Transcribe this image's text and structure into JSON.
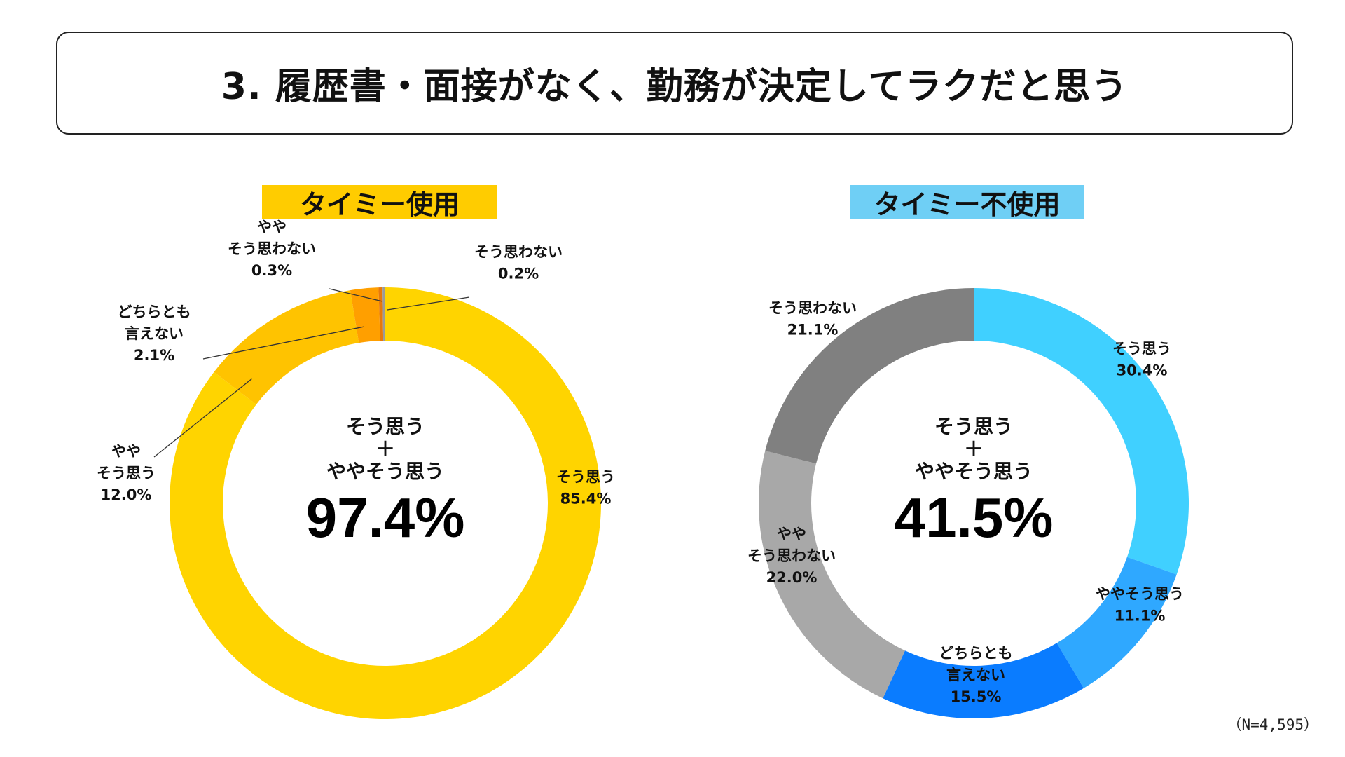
{
  "title": "3. 履歴書・面接がなく、勤務が決定してラクだと思う",
  "note": "（N=4,595）",
  "chart_data": [
    {
      "type": "pie",
      "title": "タイミー使用",
      "title_bg": "#FFCC00",
      "center_lines": [
        "そう思う",
        "＋",
        "ややそう思う"
      ],
      "center_value": "97.4%",
      "slices": [
        {
          "name": "そう思う",
          "value": 85.4,
          "value_label": "85.4%",
          "color": "#FFD400"
        },
        {
          "name": "やや\nそう思う",
          "value": 12.0,
          "value_label": "12.0%",
          "color": "#FFC300"
        },
        {
          "name": "どちらとも\n言えない",
          "value": 2.1,
          "value_label": "2.1%",
          "color": "#FF9F00"
        },
        {
          "name": "やや\nそう思わない",
          "value": 0.3,
          "value_label": "0.3%",
          "color": "#E8780A"
        },
        {
          "name": "そう思わない",
          "value": 0.2,
          "value_label": "0.2%",
          "color": "#9A9A9A"
        }
      ]
    },
    {
      "type": "pie",
      "title": "タイミー不使用",
      "title_bg": "#6FCFF5",
      "center_lines": [
        "そう思う",
        "＋",
        "ややそう思う"
      ],
      "center_value": "41.5%",
      "slices": [
        {
          "name": "そう思う",
          "value": 30.4,
          "value_label": "30.4%",
          "color": "#40D0FF"
        },
        {
          "name": "ややそう思う",
          "value": 11.1,
          "value_label": "11.1%",
          "color": "#2FA8FF"
        },
        {
          "name": "どちらとも\n言えない",
          "value": 15.5,
          "value_label": "15.5%",
          "color": "#0A7CFF"
        },
        {
          "name": "やや\nそう思わない",
          "value": 22.0,
          "value_label": "22.0%",
          "color": "#A8A8A8"
        },
        {
          "name": "そう思わない",
          "value": 21.1,
          "value_label": "21.1%",
          "color": "#808080"
        }
      ]
    }
  ]
}
